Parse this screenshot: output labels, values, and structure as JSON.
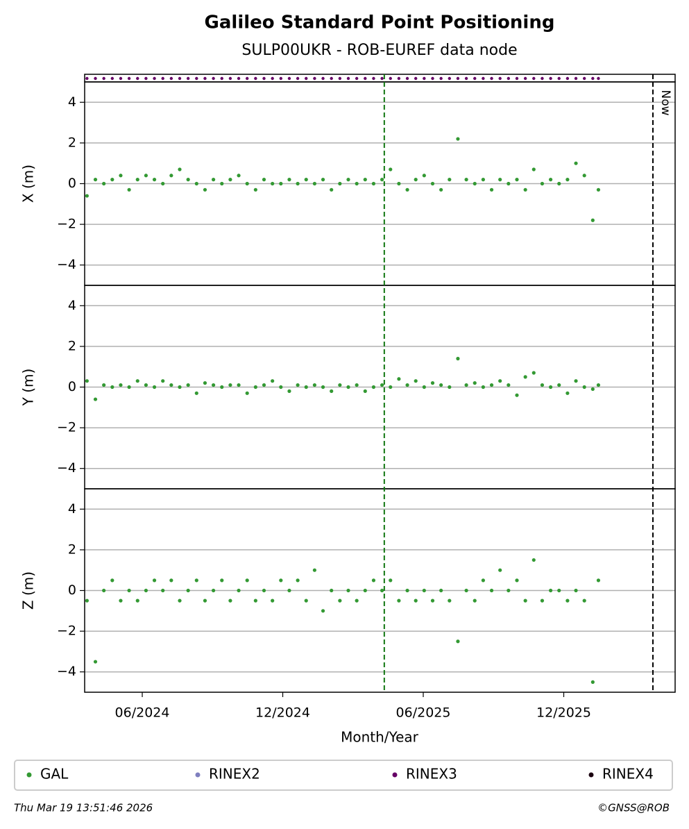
{
  "title": "Galileo Standard Point Positioning",
  "subtitle": "SULP00UKR - ROB-EUREF data node",
  "xlabel": "Month/Year",
  "footer_left": "Thu Mar 19 13:51:46 2026",
  "footer_right": "©GNSS@ROB",
  "now_line": {
    "value": 2026.234,
    "label": "Now"
  },
  "marker_line": 2025.278,
  "legend": [
    {
      "name": "GAL",
      "color": "#339933"
    },
    {
      "name": "RINEX2",
      "color": "#7f7fbf"
    },
    {
      "name": "RINEX3",
      "color": "#660066"
    },
    {
      "name": "RINEX4",
      "color": "#1a0010"
    }
  ],
  "chart_data": [
    {
      "type": "scatter",
      "ylabel": "X (m)",
      "xlim": [
        2024.2117,
        2026.313
      ],
      "ylim": [
        -5,
        5
      ],
      "yticks": [
        {
          "value": -4,
          "label": "−4"
        },
        {
          "value": -2,
          "label": "−2"
        },
        0,
        2,
        4
      ],
      "grid": true,
      "x": [
        2024.22,
        2024.25,
        2024.28,
        2024.31,
        2024.34,
        2024.37,
        2024.4,
        2024.43,
        2024.46,
        2024.49,
        2024.52,
        2024.55,
        2024.58,
        2024.61,
        2024.64,
        2024.67,
        2024.7,
        2024.73,
        2024.76,
        2024.79,
        2024.82,
        2024.85,
        2024.88,
        2024.91,
        2024.94,
        2024.97,
        2025.0,
        2025.03,
        2025.06,
        2025.09,
        2025.12,
        2025.15,
        2025.18,
        2025.21,
        2025.24,
        2025.27,
        2025.3,
        2025.33,
        2025.36,
        2025.39,
        2025.42,
        2025.45,
        2025.48,
        2025.51,
        2025.54,
        2025.57,
        2025.6,
        2025.63,
        2025.66,
        2025.69,
        2025.72,
        2025.75,
        2025.78,
        2025.81,
        2025.84,
        2025.87,
        2025.9,
        2025.93,
        2025.96,
        2025.99,
        2026.02,
        2026.04
      ],
      "series": [
        {
          "name": "GAL",
          "color": "#339933",
          "values": [
            -0.6,
            0.2,
            0,
            0.2,
            0.4,
            -0.3,
            0.2,
            0.4,
            0.2,
            0,
            0.4,
            0.7,
            0.2,
            0,
            -0.3,
            0.2,
            0,
            0.2,
            0.4,
            0,
            -0.3,
            0.2,
            0,
            0,
            0.2,
            0,
            0.2,
            0,
            0.2,
            -0.3,
            0,
            0.2,
            0,
            0.2,
            0,
            0.2,
            0.7,
            0,
            -0.3,
            0.2,
            0.4,
            0,
            -0.3,
            0.2,
            2.2,
            0.2,
            0,
            0.2,
            -0.3,
            0.2,
            0,
            0.2,
            -0.3,
            0.7,
            0,
            0.2,
            0,
            0.2,
            1.0,
            0.4,
            -1.8,
            -0.3
          ]
        }
      ]
    },
    {
      "type": "scatter",
      "ylabel": "Y (m)",
      "xlim": [
        2024.2117,
        2026.313
      ],
      "ylim": [
        -5,
        5
      ],
      "yticks": [
        {
          "value": -4,
          "label": "−4"
        },
        {
          "value": -2,
          "label": "−2"
        },
        0,
        2,
        4
      ],
      "grid": true,
      "x": [
        2024.22,
        2024.25,
        2024.28,
        2024.31,
        2024.34,
        2024.37,
        2024.4,
        2024.43,
        2024.46,
        2024.49,
        2024.52,
        2024.55,
        2024.58,
        2024.61,
        2024.64,
        2024.67,
        2024.7,
        2024.73,
        2024.76,
        2024.79,
        2024.82,
        2024.85,
        2024.88,
        2024.91,
        2024.94,
        2024.97,
        2025.0,
        2025.03,
        2025.06,
        2025.09,
        2025.12,
        2025.15,
        2025.18,
        2025.21,
        2025.24,
        2025.27,
        2025.3,
        2025.33,
        2025.36,
        2025.39,
        2025.42,
        2025.45,
        2025.48,
        2025.51,
        2025.54,
        2025.57,
        2025.6,
        2025.63,
        2025.66,
        2025.69,
        2025.72,
        2025.75,
        2025.78,
        2025.81,
        2025.84,
        2025.87,
        2025.9,
        2025.93,
        2025.96,
        2025.99,
        2026.02,
        2026.04
      ],
      "series": [
        {
          "name": "GAL",
          "color": "#339933",
          "values": [
            0.3,
            -0.6,
            0.1,
            0,
            0.1,
            0,
            0.3,
            0.1,
            0,
            0.3,
            0.1,
            0,
            0.1,
            -0.3,
            0.2,
            0.1,
            0,
            0.1,
            0.1,
            -0.3,
            0,
            0.1,
            0.3,
            0,
            -0.2,
            0.1,
            0,
            0.1,
            0,
            -0.2,
            0.1,
            0,
            0.1,
            -0.2,
            0,
            0.1,
            0,
            0.4,
            0.1,
            0.3,
            0,
            0.2,
            0.1,
            0,
            1.4,
            0.1,
            0.2,
            0,
            0.1,
            0.3,
            0.1,
            -0.4,
            0.5,
            0.7,
            0.1,
            0,
            0.1,
            -0.3,
            0.3,
            0,
            -0.1,
            0.1
          ]
        }
      ]
    },
    {
      "type": "scatter",
      "ylabel": "Z (m)",
      "xlim": [
        2024.2117,
        2026.313
      ],
      "ylim": [
        -5,
        5
      ],
      "yticks": [
        {
          "value": -4,
          "label": "−4"
        },
        {
          "value": -2,
          "label": "−2"
        },
        0,
        2,
        4
      ],
      "grid": true,
      "xticks": [
        {
          "value": 2024.4167,
          "label": "06/2024"
        },
        {
          "value": 2024.9167,
          "label": "12/2024"
        },
        {
          "value": 2025.4167,
          "label": "06/2025"
        },
        {
          "value": 2025.9167,
          "label": "12/2025"
        }
      ],
      "x": [
        2024.22,
        2024.25,
        2024.28,
        2024.31,
        2024.34,
        2024.37,
        2024.4,
        2024.43,
        2024.46,
        2024.49,
        2024.52,
        2024.55,
        2024.58,
        2024.61,
        2024.64,
        2024.67,
        2024.7,
        2024.73,
        2024.76,
        2024.79,
        2024.82,
        2024.85,
        2024.88,
        2024.91,
        2024.94,
        2024.97,
        2025.0,
        2025.03,
        2025.06,
        2025.09,
        2025.12,
        2025.15,
        2025.18,
        2025.21,
        2025.24,
        2025.27,
        2025.3,
        2025.33,
        2025.36,
        2025.39,
        2025.42,
        2025.45,
        2025.48,
        2025.51,
        2025.54,
        2025.57,
        2025.6,
        2025.63,
        2025.66,
        2025.69,
        2025.72,
        2025.75,
        2025.78,
        2025.81,
        2025.84,
        2025.87,
        2025.9,
        2025.93,
        2025.96,
        2025.99,
        2026.02,
        2026.04
      ],
      "series": [
        {
          "name": "GAL",
          "color": "#339933",
          "values": [
            -0.5,
            -3.5,
            0,
            0.5,
            -0.5,
            0,
            -0.5,
            0,
            0.5,
            0,
            0.5,
            -0.5,
            0,
            0.5,
            -0.5,
            0,
            0.5,
            -0.5,
            0,
            0.5,
            -0.5,
            0,
            -0.5,
            0.5,
            0,
            0.5,
            -0.5,
            1.0,
            -1.0,
            0,
            -0.5,
            0,
            -0.5,
            0,
            0.5,
            0,
            0.5,
            -0.5,
            0,
            -0.5,
            0,
            -0.5,
            0,
            -0.5,
            -2.5,
            0,
            -0.5,
            0.5,
            0,
            1.0,
            0,
            0.5,
            -0.5,
            1.5,
            -0.5,
            0,
            0,
            -0.5,
            0,
            -0.5,
            -4.5,
            0.5
          ]
        }
      ]
    }
  ]
}
